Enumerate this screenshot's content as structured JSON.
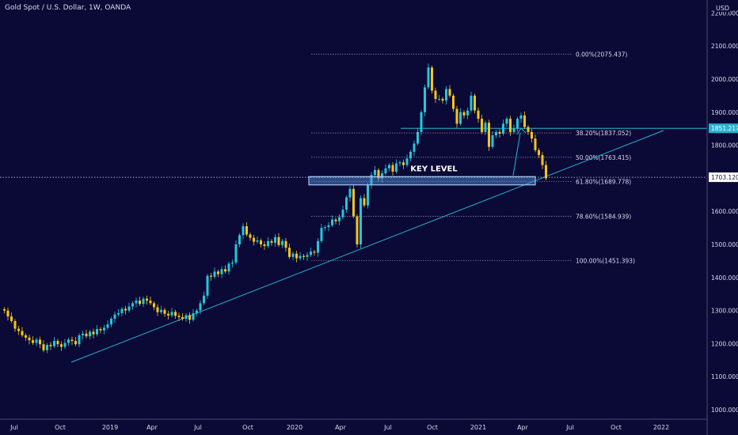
{
  "header": {
    "title": "Gold Spot / U.S. Dollar, 1W, OANDA",
    "currency": "USD"
  },
  "colors": {
    "background": "#0b0a36",
    "up": "#26c6da",
    "down": "#f5c518",
    "line": "#26b5d0",
    "text": "#d9d9ef",
    "fib": "#8a8aa6"
  },
  "chart_data": {
    "type": "candlestick",
    "title": "Gold Spot / U.S. Dollar, 1W, OANDA",
    "y_unit": "USD",
    "ylim": [
      980,
      2230
    ],
    "y_ticks": [
      1000,
      1100,
      1200,
      1300,
      1400,
      1500,
      1600,
      1700,
      1800,
      1900,
      2000,
      2100,
      2200
    ],
    "y_tick_labels": [
      "1000.000",
      "1100.000",
      "1200.000",
      "1300.000",
      "1400.000",
      "1500.000",
      "1600.000",
      "1700.000",
      "1800.000",
      "1900.000",
      "2000.000",
      "2100.000",
      "2200.000"
    ],
    "x_ticks": [
      "Jul",
      "Oct",
      "2019",
      "Apr",
      "Jul",
      "Oct",
      "2020",
      "Apr",
      "Jul",
      "Oct",
      "2021",
      "Apr",
      "Jul",
      "Oct",
      "2022"
    ],
    "grid": false,
    "price_labels": [
      {
        "value": 1851.217,
        "label": "1851.217"
      },
      {
        "value": 1703.12,
        "label": "1703.120"
      }
    ],
    "fibonacci": [
      {
        "value": 2075.437,
        "label": "0.00%(2075.437)"
      },
      {
        "value": 1837.052,
        "label": "38.20%(1837.052)"
      },
      {
        "value": 1763.415,
        "label": "50.00%(1763.415)"
      },
      {
        "value": 1689.778,
        "label": "61.80%(1689.778)"
      },
      {
        "value": 1584.939,
        "label": "78.60%(1584.939)"
      },
      {
        "value": 1451.393,
        "label": "100.00%(1451.393)"
      }
    ],
    "key_level": {
      "label": "KEY LEVEL",
      "low": 1680,
      "high": 1705
    },
    "closes": [
      1300,
      1282,
      1268,
      1245,
      1238,
      1225,
      1218,
      1210,
      1202,
      1212,
      1198,
      1180,
      1196,
      1192,
      1208,
      1198,
      1190,
      1202,
      1212,
      1208,
      1198,
      1225,
      1230,
      1222,
      1236,
      1228,
      1244,
      1240,
      1248,
      1258,
      1275,
      1288,
      1292,
      1305,
      1300,
      1312,
      1322,
      1330,
      1320,
      1336,
      1330,
      1322,
      1310,
      1295,
      1302,
      1290,
      1285,
      1296,
      1284,
      1280,
      1275,
      1286,
      1272,
      1292,
      1300,
      1322,
      1345,
      1405,
      1402,
      1418,
      1410,
      1425,
      1418,
      1442,
      1445,
      1500,
      1528,
      1555,
      1530,
      1520,
      1508,
      1512,
      1500,
      1495,
      1510,
      1505,
      1522,
      1498,
      1510,
      1490,
      1462,
      1472,
      1458,
      1465,
      1462,
      1468,
      1478,
      1475,
      1510,
      1550,
      1552,
      1558,
      1575,
      1570,
      1582,
      1605,
      1642,
      1668,
      1585,
      1500,
      1640,
      1618,
      1680,
      1710,
      1725,
      1700,
      1715,
      1730,
      1740,
      1720,
      1745,
      1748,
      1740,
      1760,
      1780,
      1805,
      1840,
      1900,
      1975,
      2035,
      1965,
      1940,
      1940,
      1935,
      1970,
      1950,
      1910,
      1865,
      1900,
      1890,
      1905,
      1950,
      1905,
      1880,
      1840,
      1868,
      1795,
      1830,
      1840,
      1835,
      1865,
      1880,
      1840,
      1850,
      1880,
      1890,
      1855,
      1840,
      1820,
      1785,
      1770,
      1740,
      1700
    ]
  }
}
